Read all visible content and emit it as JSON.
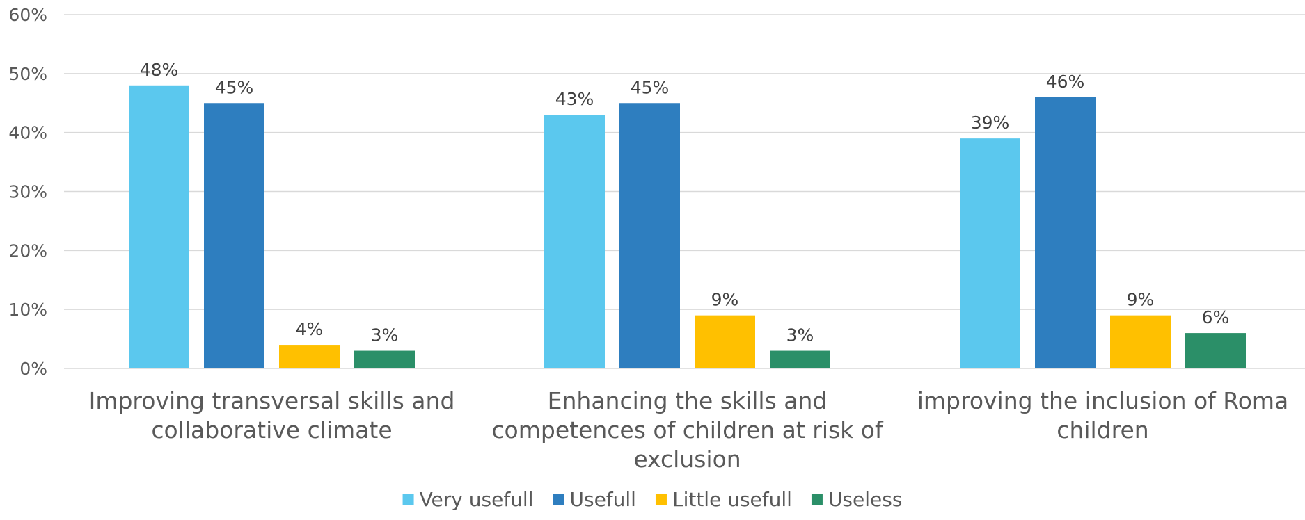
{
  "chart_data": {
    "type": "bar",
    "categories": [
      [
        "Improving transversal skills and",
        "collaborative climate"
      ],
      [
        "Enhancing the skills and",
        "competences of children at risk of",
        "exclusion"
      ],
      [
        "improving the inclusion of Roma",
        "children"
      ]
    ],
    "series": [
      {
        "name": "Very usefull",
        "color": "#5bc8ee",
        "values": [
          48,
          43,
          39
        ],
        "labels": [
          "48%",
          "43%",
          "39%"
        ]
      },
      {
        "name": "Usefull",
        "color": "#2e7ebf",
        "values": [
          45,
          45,
          46
        ],
        "labels": [
          "45%",
          "45%",
          "46%"
        ]
      },
      {
        "name": "Little usefull",
        "color": "#ffc000",
        "values": [
          4,
          9,
          9
        ],
        "labels": [
          "4%",
          "9%",
          "9%"
        ]
      },
      {
        "name": "Useless",
        "color": "#2b8f68",
        "values": [
          3,
          3,
          6
        ],
        "labels": [
          "3%",
          "3%",
          "6%"
        ]
      }
    ],
    "y_ticks": [
      "0%",
      "10%",
      "20%",
      "30%",
      "40%",
      "50%",
      "60%"
    ],
    "ylim": [
      0,
      60
    ],
    "grid": true,
    "legend_position": "bottom",
    "title": "",
    "xlabel": "",
    "ylabel": ""
  }
}
